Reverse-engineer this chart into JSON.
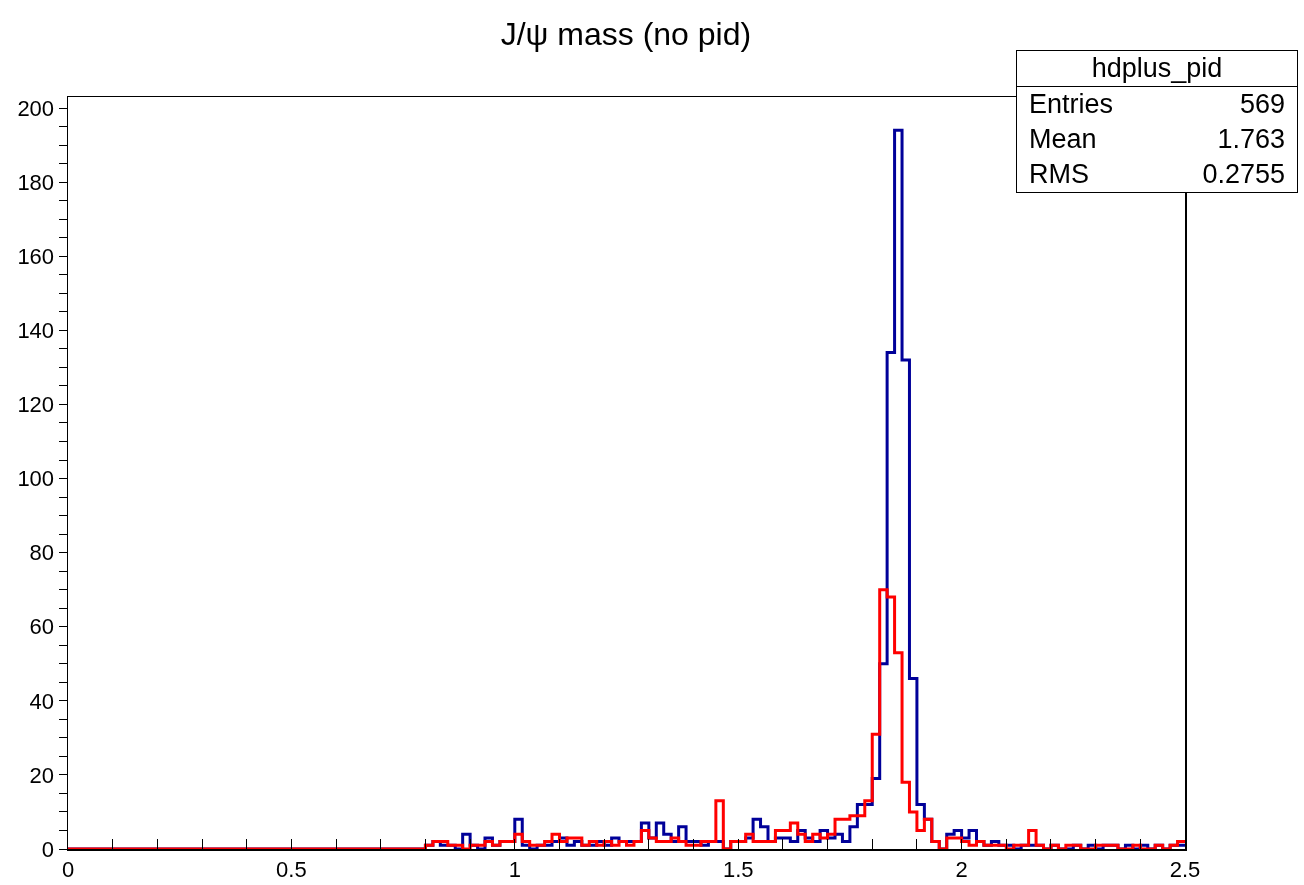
{
  "chart_data": {
    "type": "histogram",
    "title": "J/ψ mass (no pid)",
    "bins": [
      0,
      0.8,
      0.8167,
      0.8333,
      0.85,
      0.8667,
      0.8833,
      0.9,
      0.9167,
      0.9333,
      0.95,
      0.9667,
      0.9833,
      1,
      1.0167,
      1.0333,
      1.05,
      1.0667,
      1.0833,
      1.1,
      1.1167,
      1.1333,
      1.15,
      1.1667,
      1.1833,
      1.2,
      1.2167,
      1.2333,
      1.25,
      1.2667,
      1.2833,
      1.3,
      1.3167,
      1.3333,
      1.35,
      1.3667,
      1.3833,
      1.4,
      1.4167,
      1.4333,
      1.45,
      1.4667,
      1.4833,
      1.5,
      1.5167,
      1.5333,
      1.55,
      1.5667,
      1.5833,
      1.6,
      1.6167,
      1.6333,
      1.65,
      1.6667,
      1.6833,
      1.7,
      1.7167,
      1.7333,
      1.75,
      1.7667,
      1.7833,
      1.8,
      1.8167,
      1.8333,
      1.85,
      1.8667,
      1.8833,
      1.9,
      1.9167,
      1.9333,
      1.95,
      1.9667,
      1.9833,
      2,
      2.0167,
      2.0333,
      2.05,
      2.0667,
      2.0833,
      2.1,
      2.1167,
      2.1333,
      2.15,
      2.1667,
      2.1833,
      2.2,
      2.2167,
      2.2333,
      2.25,
      2.2667,
      2.2833,
      2.3,
      2.3167,
      2.3333,
      2.35,
      2.3667,
      2.3833,
      2.4,
      2.4167,
      2.4333,
      2.45,
      2.4667,
      2.4833,
      2.5
    ],
    "series": [
      {
        "color": "#000099",
        "values": [
          0,
          1,
          2,
          1,
          1,
          0,
          4,
          1,
          0,
          3,
          1,
          2,
          2,
          8,
          1,
          0,
          1,
          1,
          2,
          3,
          1,
          2,
          1,
          1,
          2,
          1,
          3,
          2,
          2,
          2,
          7,
          3,
          7,
          4,
          2,
          6,
          2,
          2,
          1,
          2,
          2,
          0,
          2,
          2,
          3,
          8,
          6,
          2,
          3,
          3,
          2,
          5,
          3,
          2,
          5,
          3,
          4,
          2,
          6,
          12,
          12,
          19,
          50,
          134,
          194,
          132,
          46,
          12,
          8,
          2,
          0,
          4,
          5,
          3,
          5,
          2,
          1,
          2,
          1,
          1,
          0,
          1,
          1,
          1,
          0,
          1,
          0,
          0,
          1,
          0,
          1,
          0,
          1,
          1,
          0,
          1,
          0,
          1,
          0,
          1,
          0,
          1,
          1
        ]
      },
      {
        "color": "#ff0000",
        "values": [
          0,
          1,
          2,
          2,
          1,
          1,
          0,
          1,
          1,
          2,
          1,
          2,
          2,
          4,
          2,
          1,
          1,
          2,
          4,
          2,
          3,
          3,
          1,
          2,
          1,
          2,
          1,
          2,
          1,
          2,
          5,
          3,
          2,
          2,
          3,
          2,
          1,
          1,
          2,
          2,
          13,
          0,
          2,
          2,
          4,
          2,
          2,
          2,
          5,
          5,
          7,
          4,
          2,
          4,
          3,
          4,
          8,
          8,
          9,
          9,
          13,
          31,
          70,
          68,
          53,
          18,
          10,
          5,
          8,
          2,
          0,
          3,
          3,
          2,
          1,
          2,
          1,
          1,
          1,
          0,
          1,
          1,
          5,
          1,
          0,
          1,
          0,
          1,
          1,
          0,
          0,
          1,
          1,
          1,
          0,
          0,
          1,
          0,
          0,
          1,
          0,
          1,
          2
        ]
      }
    ],
    "xlim": [
      0,
      2.5
    ],
    "ylim": [
      0,
      203
    ],
    "xticks": [
      0,
      {
        "value": 0.1,
        "label": null
      },
      {
        "value": 0.2,
        "label": null
      },
      {
        "value": 0.3,
        "label": null
      },
      {
        "value": 0.4,
        "label": null
      },
      0.5,
      {
        "value": 0.6,
        "label": null
      },
      {
        "value": 0.7,
        "label": null
      },
      {
        "value": 0.8,
        "label": null
      },
      {
        "value": 0.9,
        "label": null
      },
      1,
      {
        "value": 1.1,
        "label": null
      },
      {
        "value": 1.2,
        "label": null
      },
      {
        "value": 1.3,
        "label": null
      },
      {
        "value": 1.4,
        "label": null
      },
      1.5,
      {
        "value": 1.6,
        "label": null
      },
      {
        "value": 1.7,
        "label": null
      },
      {
        "value": 1.8,
        "label": null
      },
      {
        "value": 1.9,
        "label": null
      },
      2,
      {
        "value": 2.1,
        "label": null
      },
      {
        "value": 2.2,
        "label": null
      },
      {
        "value": 2.3,
        "label": null
      },
      {
        "value": 2.4,
        "label": null
      },
      2.5
    ],
    "yticks": [
      0,
      {
        "value": 5,
        "label": null
      },
      {
        "value": 10,
        "label": null
      },
      {
        "value": 15,
        "label": null
      },
      20,
      {
        "value": 25,
        "label": null
      },
      {
        "value": 30,
        "label": null
      },
      {
        "value": 35,
        "label": null
      },
      40,
      {
        "value": 45,
        "label": null
      },
      {
        "value": 50,
        "label": null
      },
      {
        "value": 55,
        "label": null
      },
      60,
      {
        "value": 65,
        "label": null
      },
      {
        "value": 70,
        "label": null
      },
      {
        "value": 75,
        "label": null
      },
      80,
      {
        "value": 85,
        "label": null
      },
      {
        "value": 90,
        "label": null
      },
      {
        "value": 95,
        "label": null
      },
      100,
      {
        "value": 105,
        "label": null
      },
      {
        "value": 110,
        "label": null
      },
      {
        "value": 115,
        "label": null
      },
      120,
      {
        "value": 125,
        "label": null
      },
      {
        "value": 130,
        "label": null
      },
      {
        "value": 135,
        "label": null
      },
      140,
      {
        "value": 145,
        "label": null
      },
      {
        "value": 150,
        "label": null
      },
      {
        "value": 155,
        "label": null
      },
      160,
      {
        "value": 165,
        "label": null
      },
      {
        "value": 170,
        "label": null
      },
      {
        "value": 175,
        "label": null
      },
      180,
      {
        "value": 185,
        "label": null
      },
      {
        "value": 190,
        "label": null
      },
      {
        "value": 195,
        "label": null
      },
      200
    ],
    "grid": false,
    "annotations": [
      "hdplus_pid",
      "Entries",
      "569",
      "Mean",
      "1.763",
      "RMS",
      "0.2755"
    ]
  }
}
